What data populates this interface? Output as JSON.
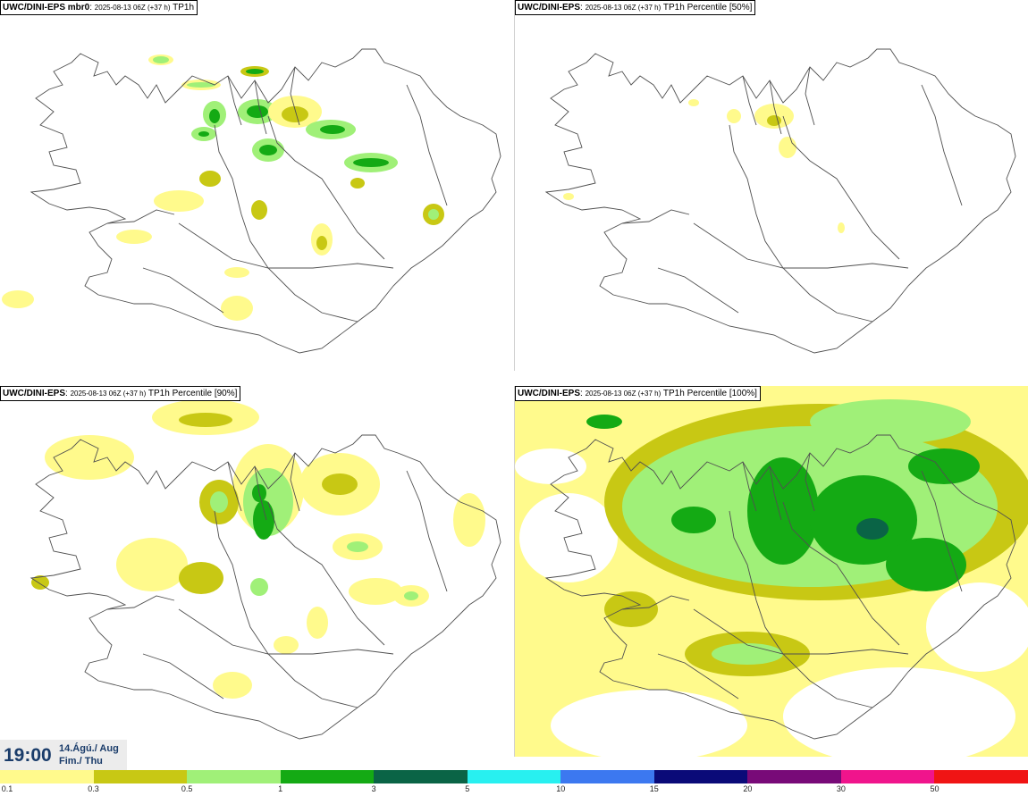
{
  "panels": [
    {
      "model": "UWC/DINI-EPS mbr0",
      "run": "2025-08-13 06Z (+37 h)",
      "field": "TP1h"
    },
    {
      "model": "UWC/DINI-EPS",
      "run": "2025-08-13 06Z (+37 h)",
      "field": "TP1h Percentile [50%]"
    },
    {
      "model": "UWC/DINI-EPS",
      "run": "2025-08-13 06Z (+37 h)",
      "field": "TP1h Percentile [90%]"
    },
    {
      "model": "UWC/DINI-EPS",
      "run": "2025-08-13 06Z (+37 h)",
      "field": "TP1h Percentile [100%]"
    }
  ],
  "time": {
    "hour": "19:00",
    "date_line1": "14.Ágú./ Aug",
    "date_line2": "Fim./ Thu"
  },
  "legend": {
    "colors": [
      "#fffa8c",
      "#c8c814",
      "#a0f078",
      "#14aa14",
      "#0a6446",
      "#28f0f0",
      "#3c78f0",
      "#0a0a78",
      "#780a78",
      "#f0148c",
      "#f01414"
    ],
    "labels": [
      "0.1",
      "0.3",
      "0.5",
      "1",
      "3",
      "5",
      "10",
      "15",
      "20",
      "30",
      "50"
    ]
  },
  "palette": {
    "light": "#fffa8c",
    "olive": "#c8c814",
    "lightgreen": "#a0f078",
    "green": "#14aa14",
    "dark": "#0a6446"
  }
}
